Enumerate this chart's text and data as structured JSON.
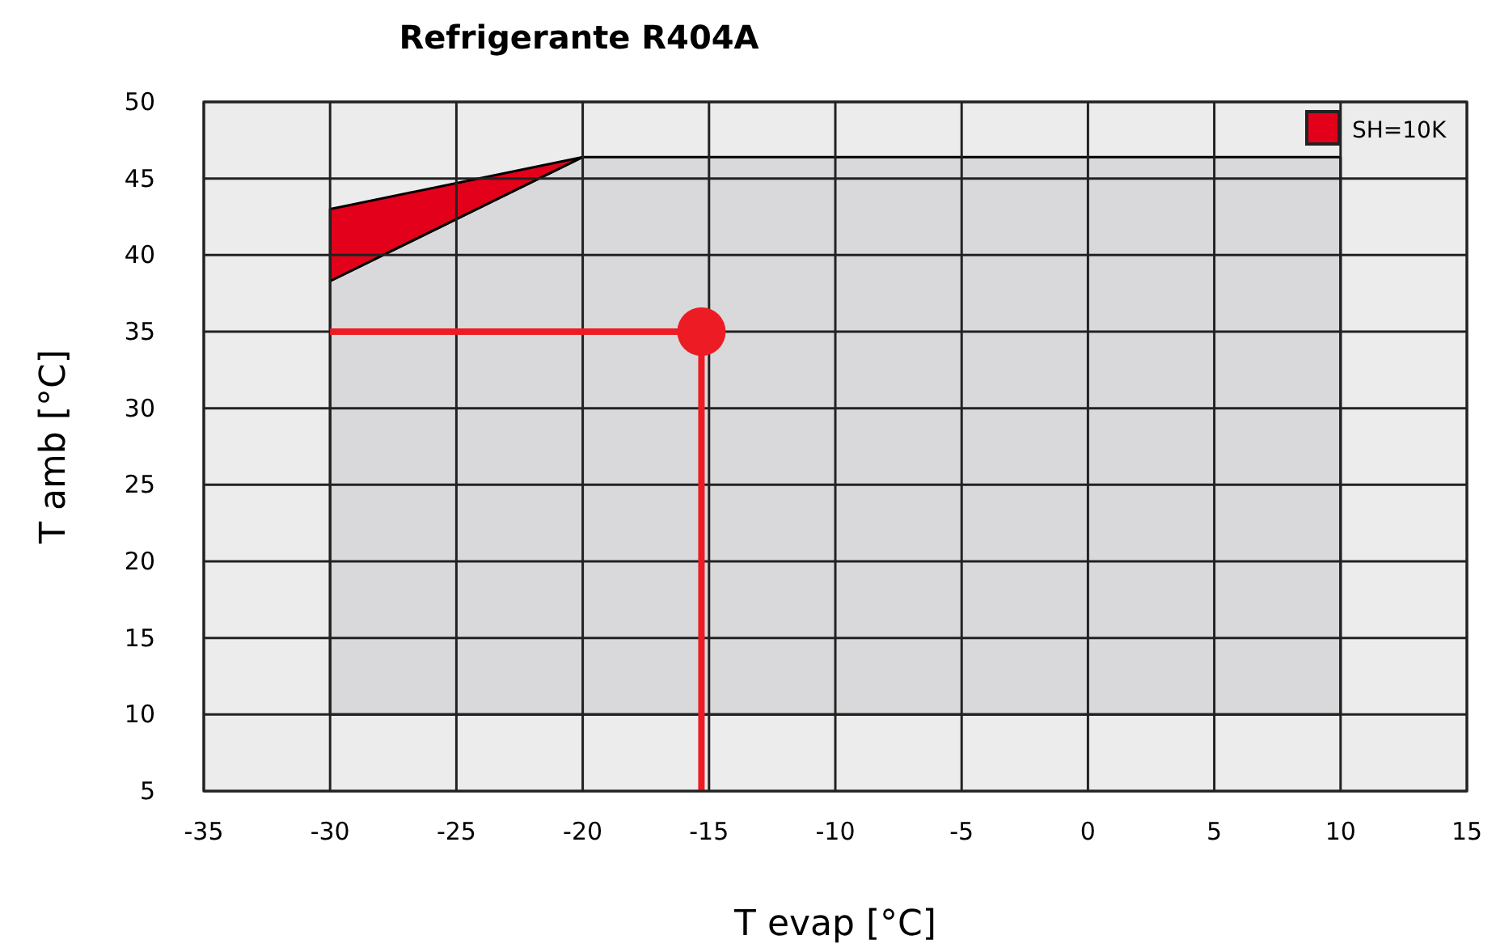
{
  "chart_data": {
    "type": "area",
    "title": "Refrigerante R404A",
    "xlabel": "T evap [°C]",
    "ylabel": "T amb [°C]",
    "xlim": [
      -35,
      15
    ],
    "xticks": [
      -35,
      -30,
      -25,
      -20,
      -15,
      -10,
      -5,
      0,
      5,
      10,
      15
    ],
    "ylim": [
      5,
      50
    ],
    "yticks": [
      5,
      10,
      15,
      20,
      25,
      30,
      35,
      40,
      45,
      50
    ],
    "grid": true,
    "legend": "top right",
    "series": [
      {
        "color": "#d9d9dc",
        "x": [
          -30,
          10,
          10,
          -20,
          -30,
          -30
        ],
        "values": [
          10,
          10,
          46.4,
          46.4,
          38.3,
          10
        ]
      },
      {
        "type": "area",
        "name": "SH=10K",
        "color": "#e2001a",
        "x": [
          -30,
          -20,
          -30,
          -30
        ],
        "values": [
          43,
          46.4,
          38.3,
          43
        ]
      },
      {
        "type": "line",
        "color": "#ed1c24",
        "x": [
          -30,
          -15.3,
          -15.3
        ],
        "values": [
          35,
          35,
          5
        ]
      },
      {
        "type": "scatter",
        "color": "#ed1c24",
        "x": [
          -15.3
        ],
        "values": [
          35
        ]
      }
    ]
  }
}
